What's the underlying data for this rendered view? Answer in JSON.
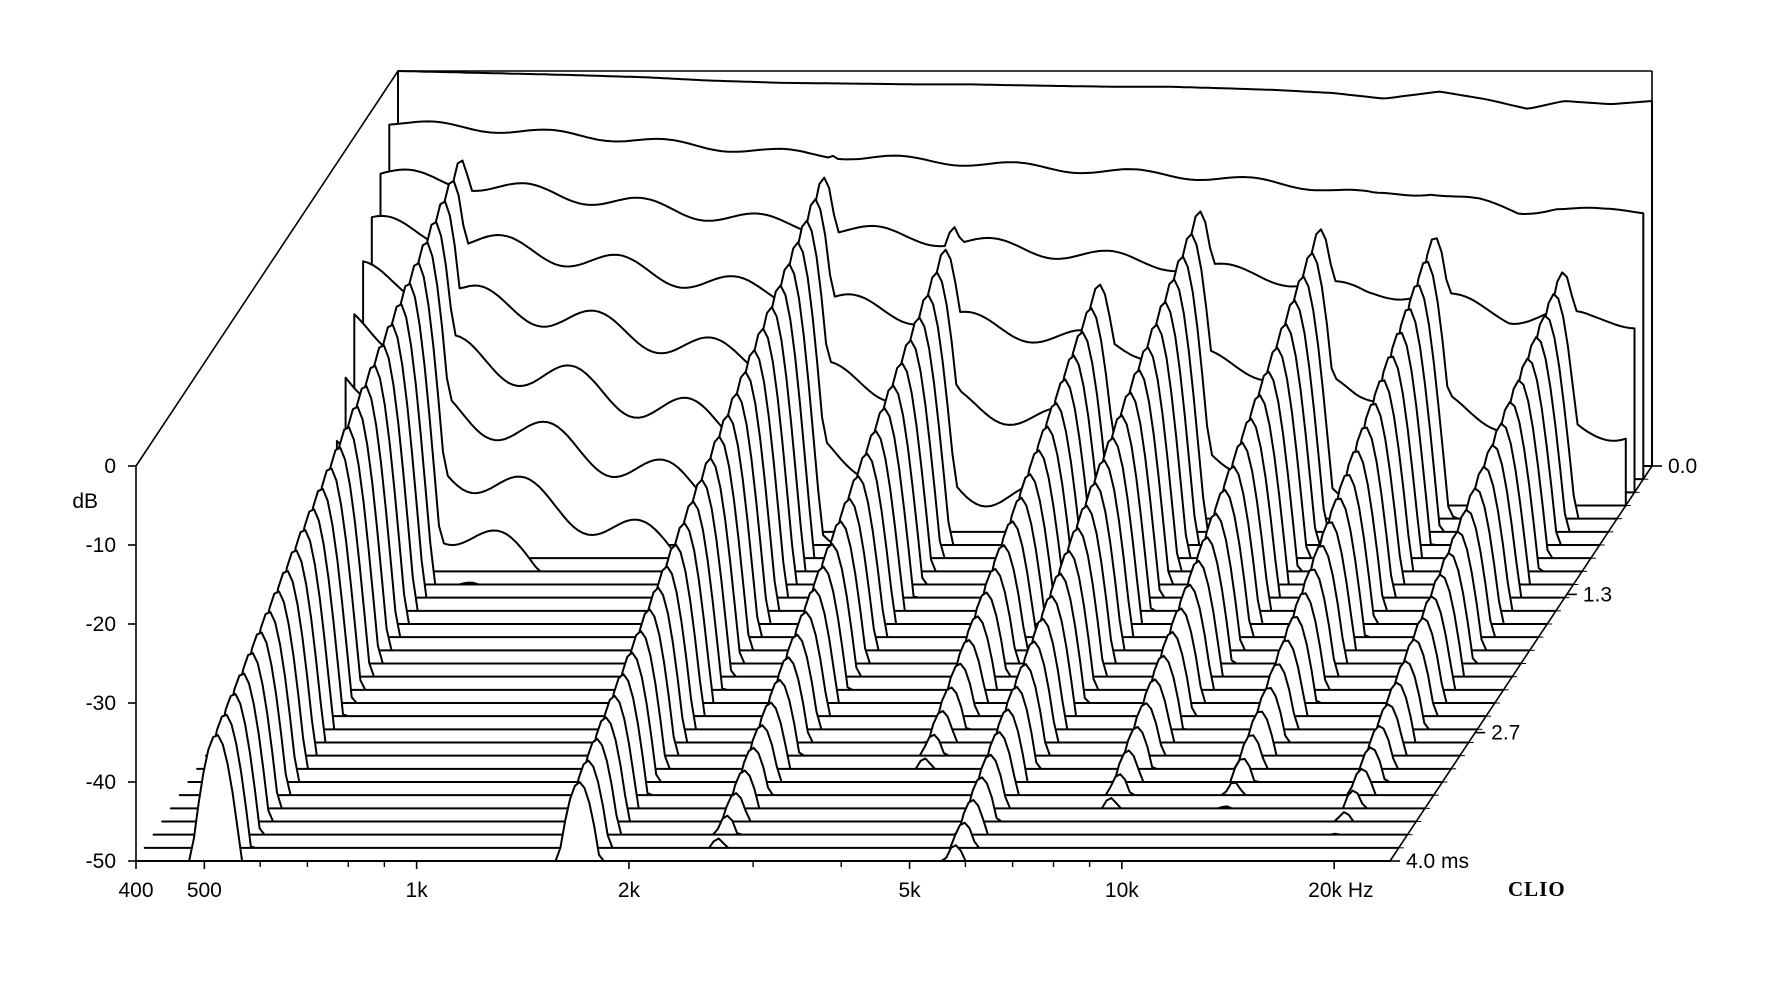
{
  "chart_data": {
    "type": "waterfall",
    "x_axis": {
      "scale": "log",
      "range": [
        400,
        24000
      ],
      "tick_labels": [
        {
          "value": 400,
          "label": "400"
        },
        {
          "value": 500,
          "label": "500"
        },
        {
          "value": 1000,
          "label": "1k"
        },
        {
          "value": 2000,
          "label": "2k"
        },
        {
          "value": 5000,
          "label": "5k"
        },
        {
          "value": 10000,
          "label": "10k"
        },
        {
          "value": 20000,
          "label": "20k Hz"
        }
      ],
      "minor_ticks": [
        600,
        700,
        800,
        900,
        3000,
        4000,
        6000,
        7000,
        8000,
        9000
      ]
    },
    "y_axis": {
      "unit_label": "dB",
      "range": [
        -50,
        0
      ],
      "tick_labels": [
        {
          "value": 0,
          "label": "0"
        },
        {
          "value": -10,
          "label": "-10"
        },
        {
          "value": -20,
          "label": "-20"
        },
        {
          "value": -30,
          "label": "-30"
        },
        {
          "value": -40,
          "label": "-40"
        },
        {
          "value": -50,
          "label": "-50"
        }
      ]
    },
    "time_axis": {
      "range_ms": [
        0.0,
        4.0
      ],
      "tick_labels": [
        {
          "value": 0.0,
          "label": "0.0"
        },
        {
          "value": 1.3,
          "label": "1.3"
        },
        {
          "value": 2.7,
          "label": "2.7"
        },
        {
          "value": 4.0,
          "label": "4.0  ms"
        }
      ]
    },
    "slice_count": 31,
    "slice_times_ms": [
      0,
      0.133,
      0.267,
      0.4,
      0.533,
      0.667,
      0.8,
      0.933,
      1.067,
      1.2,
      1.333,
      1.467,
      1.6,
      1.733,
      1.867,
      2.0,
      2.133,
      2.267,
      2.4,
      2.533,
      2.667,
      2.8,
      2.933,
      3.067,
      3.2,
      3.333,
      3.467,
      3.6,
      3.733,
      3.867,
      4.0
    ],
    "initial_response_db": {
      "freqs_hz": [
        400,
        700,
        900,
        1100,
        1400,
        1800,
        2200,
        2600,
        3000,
        3500,
        4200,
        5000,
        6000,
        7000,
        8500,
        10000,
        12000,
        14000,
        16000,
        18000,
        21000,
        24000
      ],
      "levels_db": [
        0,
        -0.5,
        -0.8,
        -1.2,
        -1.5,
        -1.6,
        -1.7,
        -1.7,
        -1.8,
        -1.9,
        -2.0,
        -2.0,
        -2.2,
        -2.4,
        -2.8,
        -3.5,
        -2.6,
        -3.6,
        -4.8,
        -3.8,
        -4.2,
        -3.8
      ]
    },
    "decay_resonances": [
      {
        "freq_hz": 520,
        "peak_db": -6,
        "decay_db_per_ms": 7
      },
      {
        "freq_hz": 1700,
        "peak_db": -8,
        "decay_db_per_ms": 8
      },
      {
        "freq_hz": 2600,
        "peak_db": -14,
        "decay_db_per_ms": 9
      },
      {
        "freq_hz": 4300,
        "peak_db": -18,
        "decay_db_per_ms": 10
      },
      {
        "freq_hz": 5800,
        "peak_db": -12,
        "decay_db_per_ms": 9
      },
      {
        "freq_hz": 8600,
        "peak_db": -14,
        "decay_db_per_ms": 10
      },
      {
        "freq_hz": 12500,
        "peak_db": -15,
        "decay_db_per_ms": 10
      },
      {
        "freq_hz": 19000,
        "peak_db": -20,
        "decay_db_per_ms": 8
      }
    ],
    "floor_db": -50,
    "brand_label": "CLIO"
  }
}
